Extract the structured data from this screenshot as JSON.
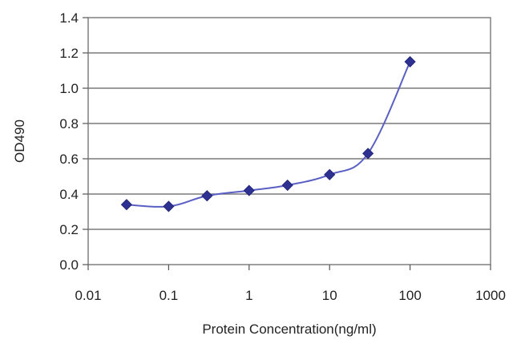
{
  "chart_data": {
    "type": "line",
    "title": "",
    "xlabel": "Protein Concentration(ng/ml)",
    "ylabel": "OD490",
    "x_scale": "log",
    "xlim": [
      0.01,
      1000
    ],
    "ylim": [
      0.0,
      1.4
    ],
    "x_ticks": [
      "0.01",
      "0.1",
      "1",
      "10",
      "100",
      "1000"
    ],
    "y_ticks": [
      "0.0",
      "0.2",
      "0.4",
      "0.6",
      "0.8",
      "1.0",
      "1.2",
      "1.4"
    ],
    "grid": "horizontal",
    "legend": "none",
    "series": [
      {
        "color": "#2e3192",
        "marker": "diamond",
        "x": [
          0.03,
          0.1,
          0.3,
          1,
          3,
          10,
          30,
          100
        ],
        "y": [
          0.34,
          0.33,
          0.39,
          0.42,
          0.45,
          0.51,
          0.63,
          1.15
        ]
      }
    ]
  }
}
